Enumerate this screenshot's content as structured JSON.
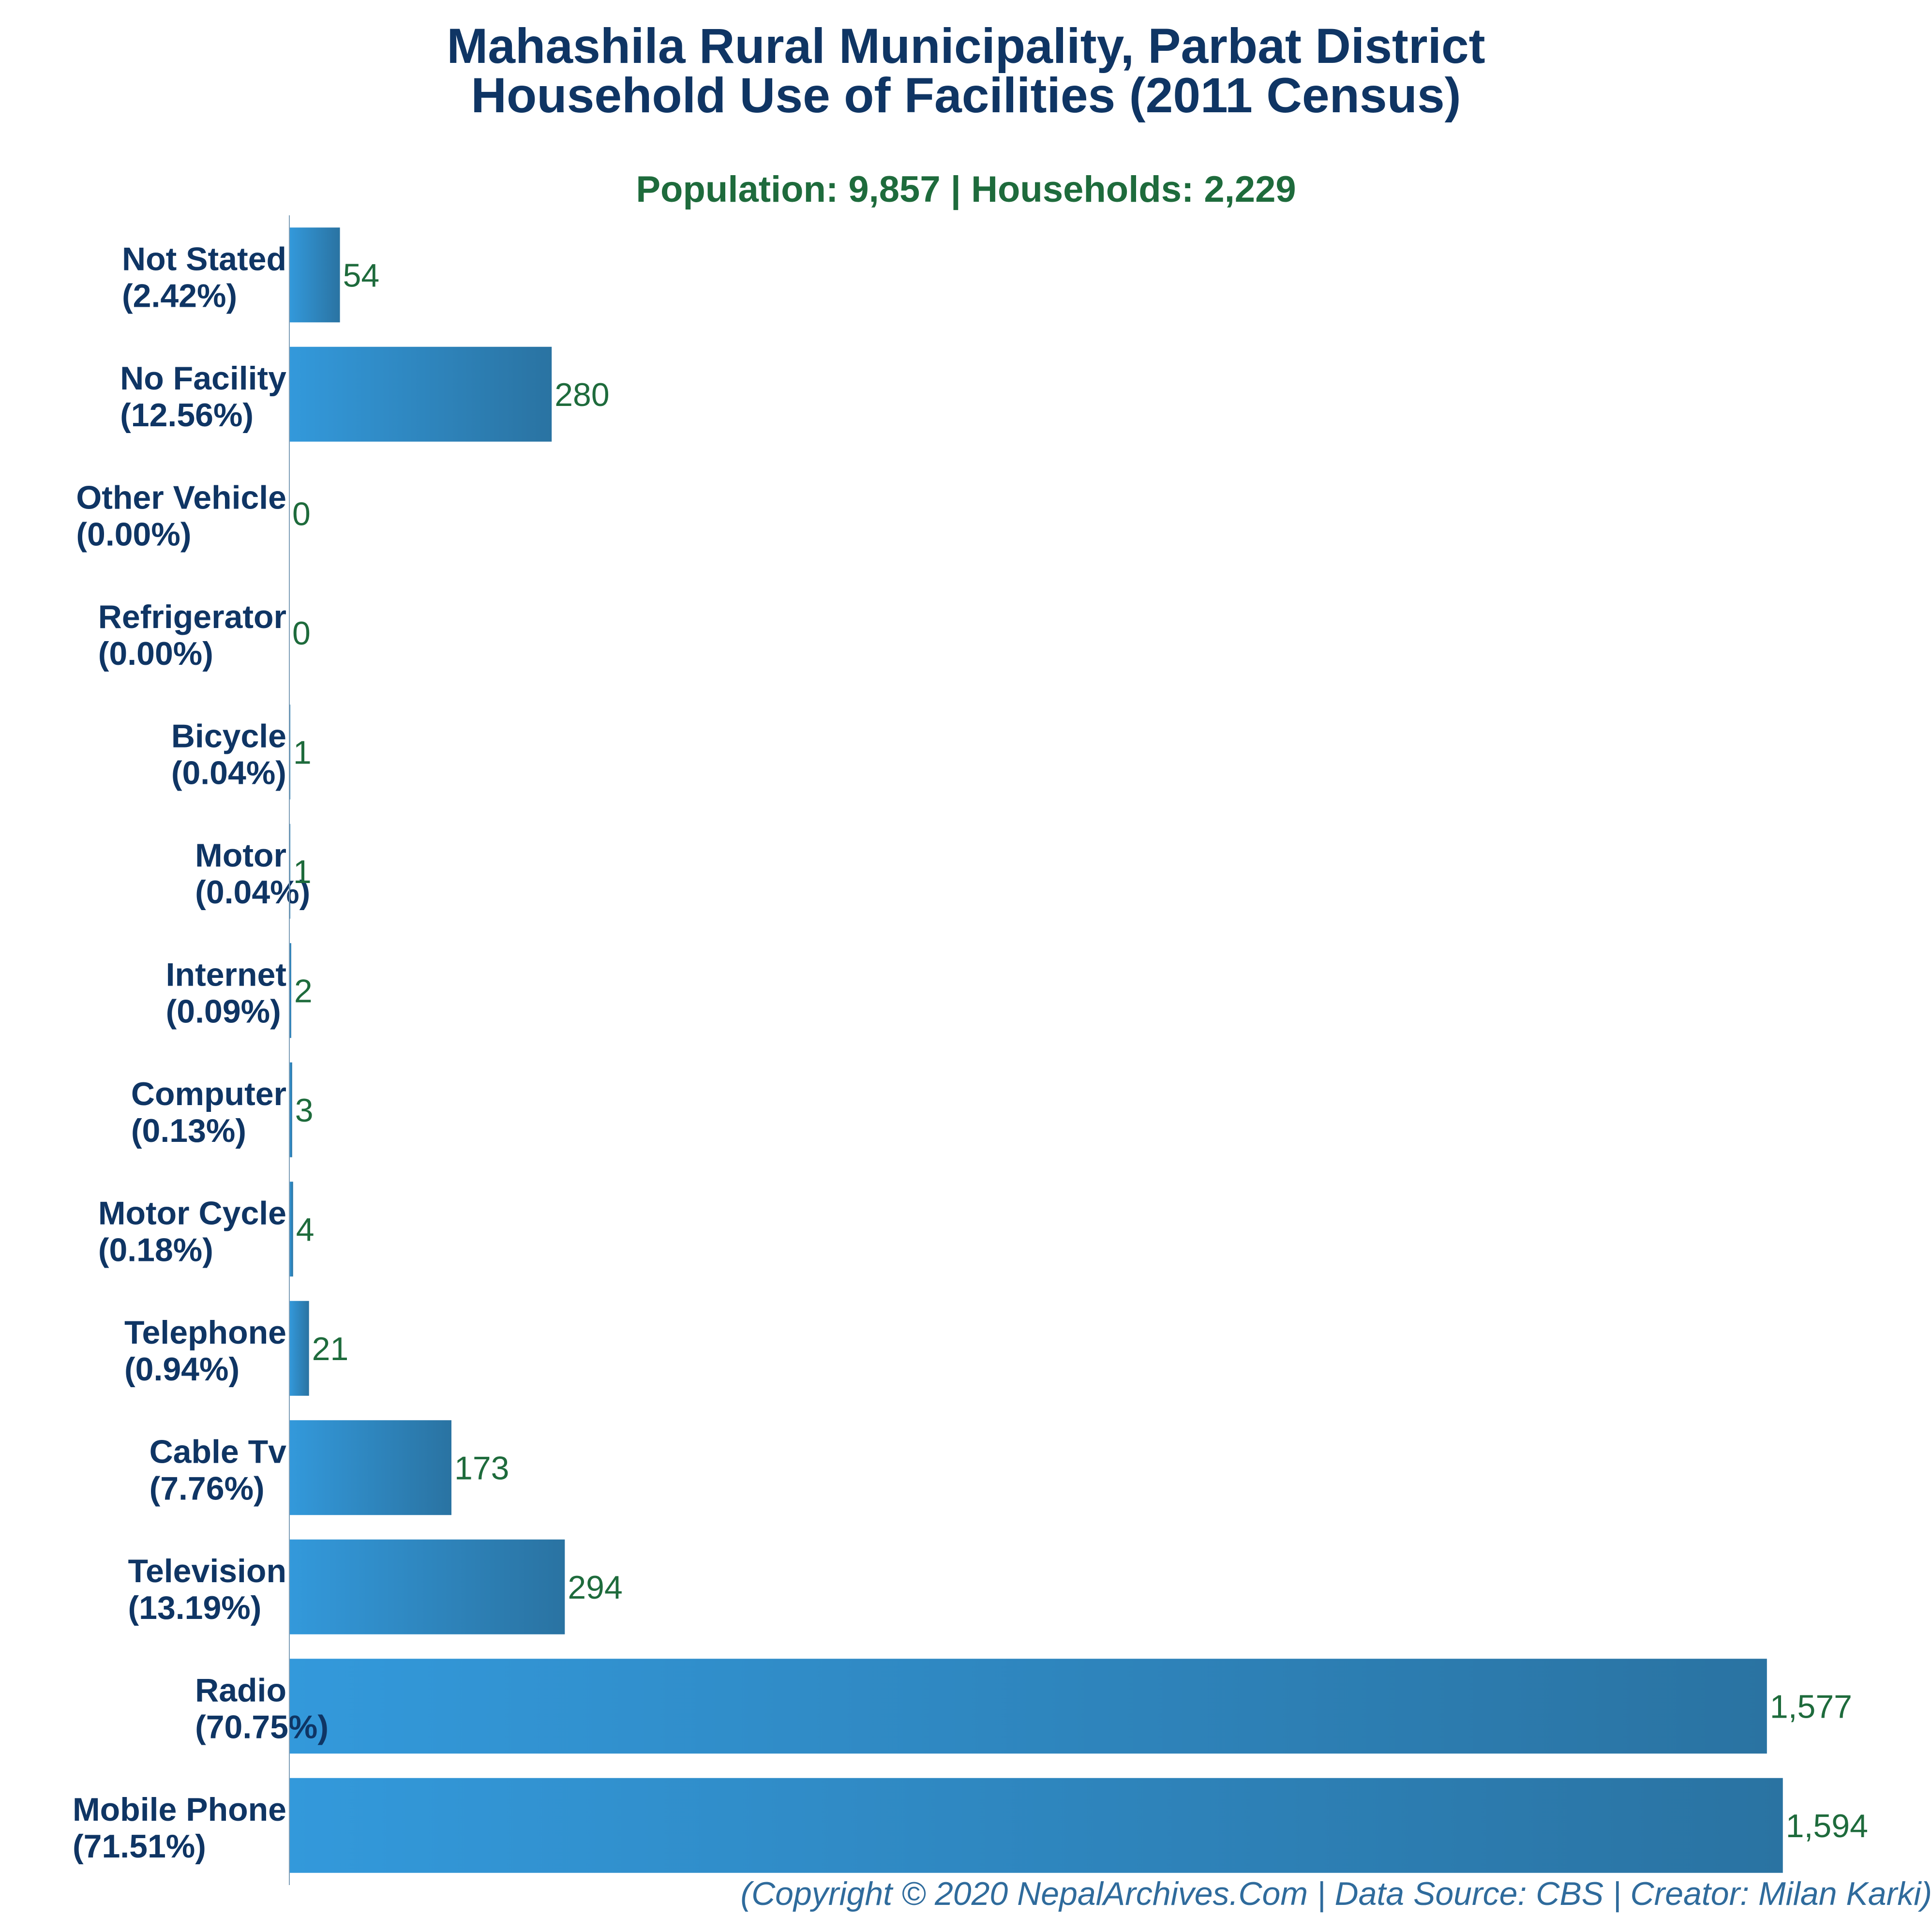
{
  "chart_data": {
    "type": "bar",
    "orientation": "horizontal",
    "title": "Mahashila Rural Municipality, Parbat District",
    "title_line_2": "Household Use of Facilities (2011 Census)",
    "subtitle": "Population: 9,857 | Households: 2,229",
    "footer": "(Copyright © 2020 NepalArchives.Com | Data Source: CBS | Creator: Milan Karki)",
    "categories": [
      "Not Stated",
      "No Facility",
      "Other Vehicle",
      "Refrigerator",
      "Bicycle",
      "Motor",
      "Internet",
      "Computer",
      "Motor Cycle",
      "Telephone",
      "Cable Tv",
      "Television",
      "Radio",
      "Mobile Phone"
    ],
    "percent_labels": [
      "(2.42%)",
      "(12.56%)",
      "(0.00%)",
      "(0.00%)",
      "(0.04%)",
      "(0.04%)",
      "(0.09%)",
      "(0.13%)",
      "(0.18%)",
      "(0.94%)",
      "(7.76%)",
      "(13.19%)",
      "(70.75%)",
      "(71.51%)"
    ],
    "values": [
      54,
      280,
      0,
      0,
      1,
      1,
      2,
      3,
      4,
      21,
      173,
      294,
      1577,
      1594
    ],
    "value_labels": [
      "54",
      "280",
      "0",
      "0",
      "1",
      "1",
      "2",
      "3",
      "4",
      "21",
      "173",
      "294",
      "1,577",
      "1,594"
    ],
    "xlim": [
      0,
      1700
    ],
    "grid": false,
    "legend": "none",
    "bar_color_start": "#3399db",
    "bar_color_end": "#2a73a2",
    "label_color": "#0f3564",
    "value_color": "#1e6b3c",
    "footer_color": "#2f6b9c"
  }
}
